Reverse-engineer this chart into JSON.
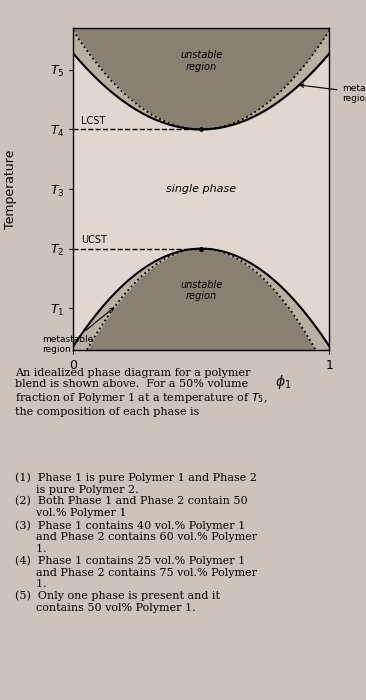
{
  "bg_color": "#ccc4bc",
  "plot_bg": "#e0d8d0",
  "xlabel": "$\\phi_1$",
  "ylabel": "Temperature",
  "yticks": [
    1,
    2,
    3,
    4,
    5
  ],
  "ytick_labels": [
    "$T_1$",
    "$T_2$",
    "$T_3$",
    "$T_4$",
    "$T_5$"
  ],
  "xticks": [
    0,
    1
  ],
  "xtick_labels": [
    "0",
    "1"
  ],
  "T_UCST": 2.0,
  "T_LCST": 4.0,
  "ylim": [
    0.3,
    5.7
  ],
  "xlim": [
    0.0,
    1.0
  ],
  "metastable_color": "#b8b0a0",
  "unstable_color": "#888070",
  "body_text": "An idealized phase diagram for a polymer\nblend is shown above.  For a 50% volume\nfraction of Polymer 1 at a temperature of $T_5$,\nthe composition of each phase is",
  "options_text": "(1)  Phase 1 is pure Polymer 1 and Phase 2\n      is pure Polymer 2.\n(2)  Both Phase 1 and Phase 2 contain 50\n      vol.% Polymer 1\n(3)  Phase 1 contains 40 vol.% Polymer 1\n      and Phase 2 contains 60 vol.% Polymer\n      1.\n(4)  Phase 1 contains 25 vol.% Polymer 1\n      and Phase 2 contains 75 vol.% Polymer\n      1.\n(5)  Only one phase is present and it\n      contains 50 vol% Polymer 1."
}
